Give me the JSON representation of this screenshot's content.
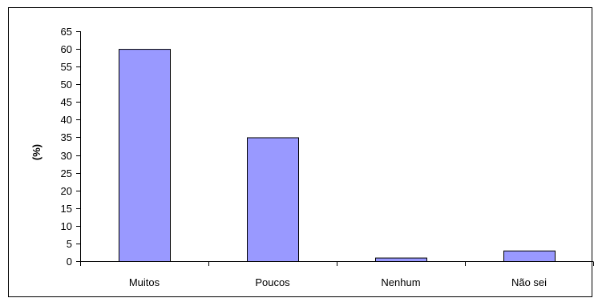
{
  "chart_data": {
    "type": "bar",
    "title": "",
    "xlabel": "",
    "ylabel": "(%)",
    "categories": [
      "Muitos",
      "Poucos",
      "Nenhum",
      "Não sei"
    ],
    "values": [
      60,
      35,
      1,
      3
    ],
    "ylim": [
      0,
      65
    ],
    "ytick_step": 5,
    "grid": false,
    "legend": "none",
    "colors": {
      "bar_fill": "#9999ff",
      "bar_stroke": "#000000",
      "frame": "#000000",
      "background": "#ffffff"
    }
  }
}
